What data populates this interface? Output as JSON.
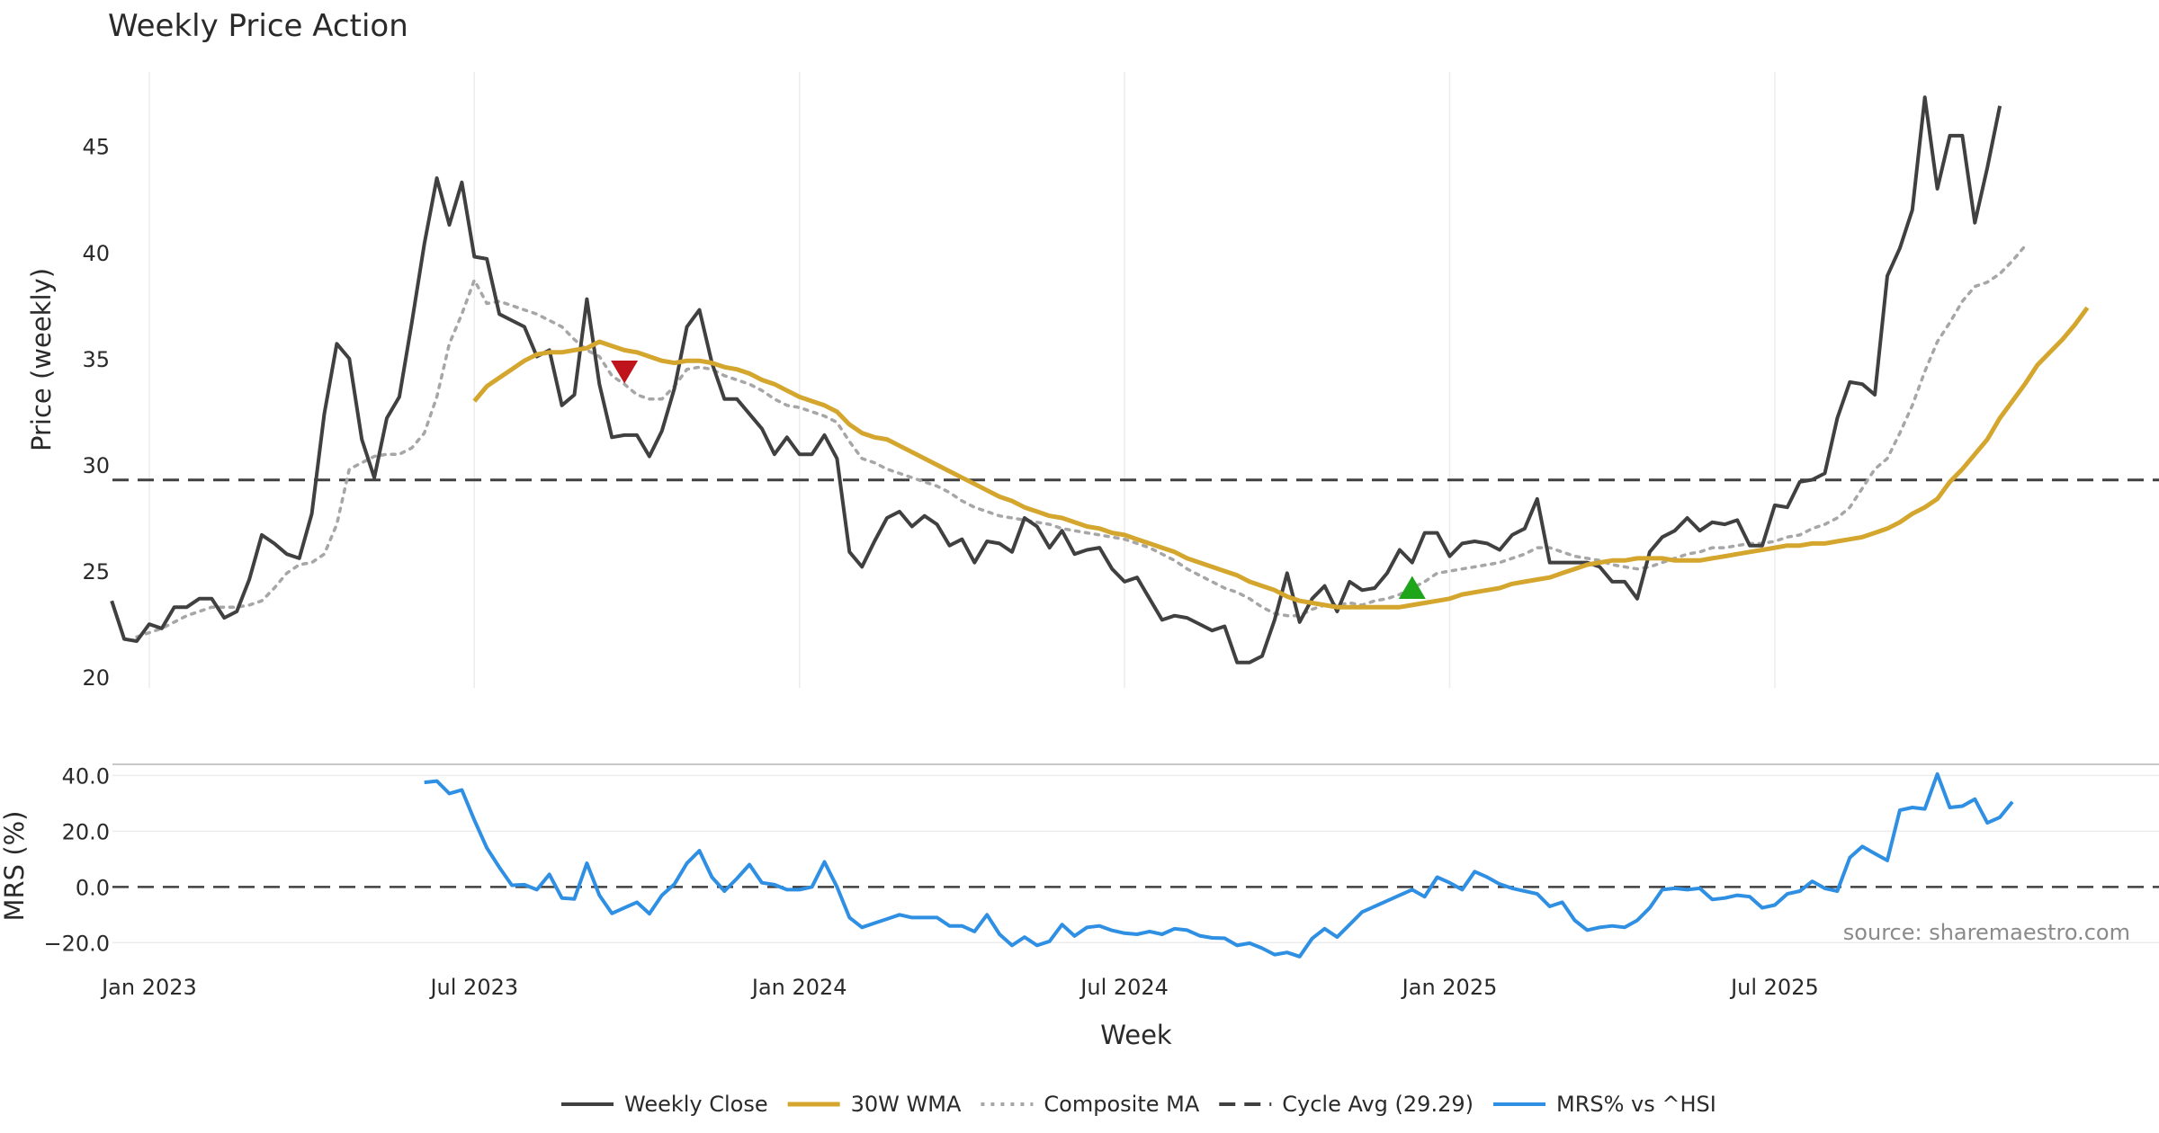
{
  "chart_data": {
    "type": "line",
    "title": "Weekly Price Action",
    "xlabel": "Week",
    "source_note": "source: sharemaestro.com",
    "x_ticks": [
      "Jan 2023",
      "Jul 2023",
      "Jan 2024",
      "Jul 2024",
      "Jan 2025",
      "Jul 2025"
    ],
    "price_panel": {
      "ylabel": "Price (weekly)",
      "ylim": [
        19.5,
        48.5
      ],
      "y_ticks": [
        "20",
        "25",
        "30",
        "35",
        "40",
        "45"
      ],
      "grid": true
    },
    "mrs_panel": {
      "ylabel": "MRS (%)",
      "ylim": [
        -27,
        44
      ],
      "y_ticks": [
        "−20.0",
        "0.0",
        "20.0",
        "40.0"
      ],
      "grid": true
    },
    "cycle_avg": 29.29,
    "series": [
      {
        "name": "Weekly Close",
        "panel": "price",
        "color": "#404040",
        "style": "solid",
        "values": [
          23.6,
          21.8,
          21.7,
          22.5,
          22.3,
          23.3,
          23.3,
          23.7,
          23.7,
          22.8,
          23.1,
          24.6,
          26.7,
          26.3,
          25.8,
          25.6,
          27.7,
          32.4,
          35.7,
          35,
          31.2,
          29.4,
          32.2,
          33.2,
          36.7,
          40.4,
          43.5,
          41.3,
          43.3,
          39.8,
          39.7,
          37.1,
          36.8,
          36.5,
          35.1,
          35.4,
          32.8,
          33.3,
          37.8,
          33.8,
          31.3,
          31.4,
          31.4,
          30.4,
          31.6,
          33.6,
          36.5,
          37.3,
          34.8,
          33.1,
          33.1,
          32.4,
          31.7,
          30.5,
          31.3,
          30.5,
          30.5,
          31.4,
          30.3,
          25.9,
          25.2,
          26.4,
          27.5,
          27.8,
          27.1,
          27.6,
          27.2,
          26.2,
          26.5,
          25.4,
          26.4,
          26.3,
          25.9,
          27.5,
          27.1,
          26.1,
          26.9,
          25.8,
          26,
          26.1,
          25.1,
          24.5,
          24.7,
          23.7,
          22.7,
          22.9,
          22.8,
          22.5,
          22.2,
          22.4,
          20.7,
          20.7,
          21,
          22.7,
          24.9,
          22.6,
          23.7,
          24.3,
          23.1,
          24.5,
          24.1,
          24.2,
          24.9,
          26,
          25.4,
          26.8,
          26.8,
          25.7,
          26.3,
          26.4,
          26.3,
          26,
          26.7,
          27,
          28.4,
          25.4,
          25.4,
          25.4,
          25.4,
          25.2,
          24.5,
          24.5,
          23.7,
          25.9,
          26.6,
          26.9,
          27.5,
          26.9,
          27.3,
          27.2,
          27.4,
          26.2,
          26.2,
          28.1,
          28,
          29.2,
          29.3,
          29.6,
          32.2,
          33.9,
          33.8,
          33.3,
          38.9,
          40.2,
          42,
          47.3,
          43,
          45.5,
          45.5,
          41.4,
          44,
          46.9
        ]
      },
      {
        "name": "30W WMA",
        "panel": "price",
        "color": "#D4A62E",
        "style": "solid",
        "start_index": 29,
        "values": [
          33,
          33.7,
          34.1,
          34.5,
          34.9,
          35.2,
          35.3,
          35.3,
          35.4,
          35.5,
          35.8,
          35.6,
          35.4,
          35.3,
          35.1,
          34.9,
          34.8,
          34.9,
          34.9,
          34.8,
          34.6,
          34.5,
          34.3,
          34,
          33.8,
          33.5,
          33.2,
          33,
          32.8,
          32.5,
          31.9,
          31.5,
          31.3,
          31.2,
          30.9,
          30.6,
          30.3,
          30,
          29.7,
          29.4,
          29.1,
          28.8,
          28.5,
          28.3,
          28,
          27.8,
          27.6,
          27.5,
          27.3,
          27.1,
          27,
          26.8,
          26.7,
          26.5,
          26.3,
          26.1,
          25.9,
          25.6,
          25.4,
          25.2,
          25,
          24.8,
          24.5,
          24.3,
          24.1,
          23.8,
          23.6,
          23.5,
          23.4,
          23.3,
          23.3,
          23.3,
          23.3,
          23.3,
          23.3,
          23.4,
          23.5,
          23.6,
          23.7,
          23.9,
          24,
          24.1,
          24.2,
          24.4,
          24.5,
          24.6,
          24.7,
          24.9,
          25.1,
          25.3,
          25.4,
          25.5,
          25.5,
          25.6,
          25.6,
          25.6,
          25.5,
          25.5,
          25.5,
          25.6,
          25.7,
          25.8,
          25.9,
          26,
          26.1,
          26.2,
          26.2,
          26.3,
          26.3,
          26.4,
          26.5,
          26.6,
          26.8,
          27,
          27.3,
          27.7,
          28,
          28.4,
          29.2,
          29.8,
          30.5,
          31.2,
          32.2,
          33,
          33.8,
          34.7,
          35.3,
          35.9,
          36.6,
          37.4
        ]
      },
      {
        "name": "Composite MA",
        "panel": "price",
        "color": "#a6a6a6",
        "style": "dotted",
        "start_index": 2,
        "values": [
          21.9,
          22.1,
          22.3,
          22.6,
          22.9,
          23.1,
          23.3,
          23.3,
          23.3,
          23.4,
          23.6,
          24.2,
          24.9,
          25.3,
          25.4,
          25.8,
          27.2,
          29.8,
          30.1,
          30.4,
          30.5,
          30.5,
          30.8,
          31.5,
          33.2,
          35.7,
          37.1,
          38.7,
          37.6,
          37.7,
          37.5,
          37.3,
          37.1,
          36.8,
          36.5,
          35.9,
          35.4,
          35.1,
          34.2,
          33.8,
          33.3,
          33.1,
          33.1,
          33.7,
          34.5,
          34.6,
          34.5,
          34.2,
          34,
          33.8,
          33.5,
          33.1,
          32.8,
          32.7,
          32.5,
          32.3,
          32,
          31.1,
          30.3,
          30.1,
          29.8,
          29.6,
          29.4,
          29.2,
          29,
          28.7,
          28.3,
          28,
          27.8,
          27.6,
          27.5,
          27.4,
          27.3,
          27.2,
          27,
          26.9,
          26.8,
          26.7,
          26.6,
          26.5,
          26.3,
          26.1,
          25.8,
          25.5,
          25.1,
          24.8,
          24.5,
          24.2,
          24,
          23.7,
          23.3,
          23,
          22.9,
          22.9,
          23.2,
          23.4,
          23.4,
          23.5,
          23.4,
          23.6,
          23.7,
          23.9,
          24.2,
          24.5,
          24.9,
          25,
          25.1,
          25.2,
          25.3,
          25.4,
          25.6,
          25.8,
          26.1,
          26.1,
          25.9,
          25.7,
          25.6,
          25.5,
          25.3,
          25.2,
          25.1,
          25.2,
          25.4,
          25.6,
          25.8,
          25.9,
          26.1,
          26.1,
          26.2,
          26.3,
          26.3,
          26.4,
          26.6,
          26.7,
          27,
          27.2,
          27.5,
          28,
          28.9,
          29.8,
          30.3,
          31.5,
          32.8,
          34.4,
          35.8,
          36.7,
          37.7,
          38.4,
          38.6,
          39,
          39.6,
          40.3
        ]
      },
      {
        "name": "MRS% vs ^HSI",
        "panel": "mrs",
        "color": "#2E8FE3",
        "style": "solid",
        "start_index": 25,
        "values": [
          37.5,
          38,
          33.5,
          34.8,
          24,
          14,
          7,
          0.6,
          0.8,
          -1,
          4.5,
          -4,
          -4.3,
          8.5,
          -3,
          -9.5,
          -7.5,
          -5.5,
          -9.6,
          -3,
          1,
          8.5,
          13,
          3.5,
          -1.5,
          3,
          8,
          1.5,
          0.8,
          -1,
          -1,
          0,
          9,
          0,
          -11,
          -14.5,
          -13,
          -11.5,
          -10,
          -11,
          -11,
          -11,
          -14,
          -14,
          -16,
          -10,
          -17,
          -21,
          -18,
          -21,
          -19.5,
          -13.5,
          -17.6,
          -14.5,
          -14,
          -15.6,
          -16.6,
          -17,
          -16,
          -17,
          -15,
          -15.5,
          -17.5,
          -18.3,
          -18.4,
          -21,
          -20.2,
          -22,
          -24.3,
          -23.5,
          -25,
          -18.5,
          -15,
          -18,
          -13.5,
          -9,
          -7,
          -5,
          -3,
          -1,
          -3.5,
          3.5,
          1.5,
          -1,
          5.5,
          3.5,
          1,
          -0.5,
          -1.5,
          -2.5,
          -7,
          -5.5,
          -12,
          -15.5,
          -14.5,
          -14,
          -14.5,
          -12,
          -7.5,
          -1,
          -0.5,
          -1,
          -0.5,
          -4.5,
          -4,
          -3,
          -3.5,
          -7.5,
          -6.5,
          -2.5,
          -1.5,
          2,
          -0.5,
          -1.5,
          10.5,
          14.5,
          12,
          9.5,
          27.5,
          28.5,
          28,
          40.5,
          28.5,
          29,
          31.5,
          23,
          25,
          30.5
        ]
      }
    ],
    "markers": [
      {
        "type": "sell",
        "shape": "triangle-down",
        "color": "#C0141C",
        "index": 41,
        "value": 34.4
      },
      {
        "type": "buy",
        "shape": "triangle-up",
        "color": "#1FA51A",
        "index": 104,
        "value": 24.2
      }
    ],
    "legend": {
      "placement": "bottom-center",
      "entries": [
        {
          "label": "Weekly Close",
          "color": "#404040",
          "style": "solid"
        },
        {
          "label": "30W WMA",
          "color": "#D4A62E",
          "style": "solid"
        },
        {
          "label": "Composite MA",
          "color": "#a6a6a6",
          "style": "dotted"
        },
        {
          "label": "Cycle Avg (29.29)",
          "color": "#404040",
          "style": "dashed"
        },
        {
          "label": "MRS% vs ^HSI",
          "color": "#2E8FE3",
          "style": "solid"
        }
      ]
    }
  }
}
